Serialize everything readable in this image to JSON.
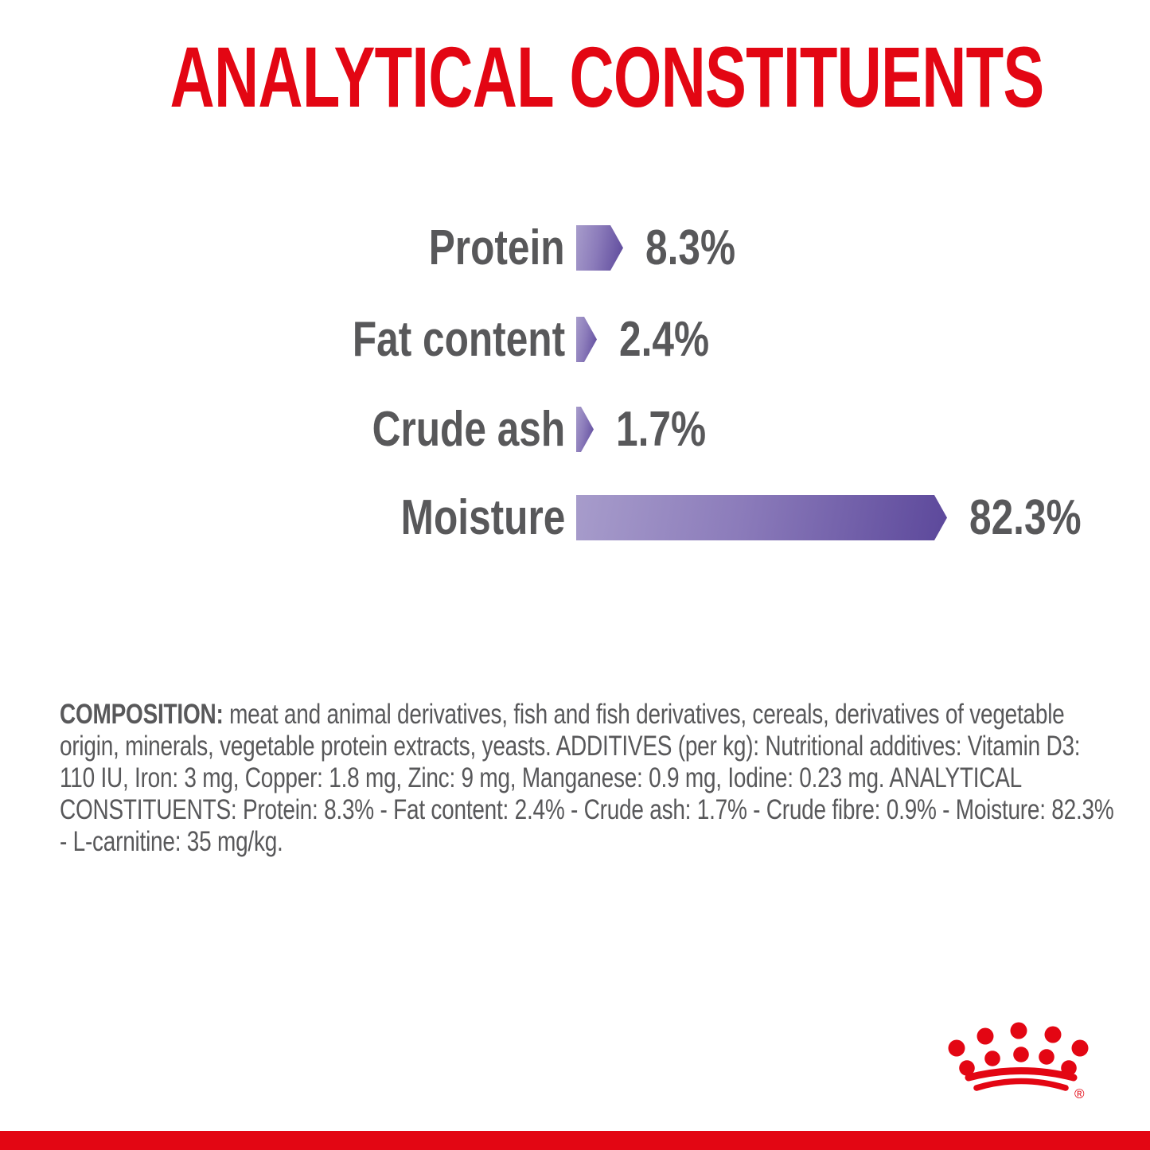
{
  "page": {
    "background": "#ffffff",
    "accent_red": "#e30613",
    "text_gray": "#58585a"
  },
  "title": "ANALYTICAL CONSTITUENTS",
  "chart_data": {
    "type": "bar",
    "orientation": "horizontal",
    "unit": "%",
    "grid": false,
    "legend": false,
    "categories": [
      "Protein",
      "Fat content",
      "Crude ash",
      "Moisture"
    ],
    "values": [
      8.3,
      2.4,
      1.7,
      82.3
    ],
    "rows": [
      {
        "label": "Protein",
        "value": 8.3,
        "display": "8.3%"
      },
      {
        "label": "Fat content",
        "value": 2.4,
        "display": "2.4%"
      },
      {
        "label": "Crude ash",
        "value": 1.7,
        "display": "1.7%"
      },
      {
        "label": "Moisture",
        "value": 82.3,
        "display": "82.3%"
      }
    ],
    "bar_gradient": [
      "#a79ccb",
      "#5c489b"
    ],
    "label_color": "#58585a",
    "value_label_color": "#58585a"
  },
  "composition": {
    "label": "COMPOSITION:",
    "text": " meat and animal derivatives, fish and fish derivatives, cereals, derivatives of vegetable\norigin, minerals, vegetable protein extracts, yeasts. ADDITIVES (per kg): Nutritional additives: Vitamin D3:\n110 IU, Iron: 3 mg, Copper: 1.8 mg, Zinc: 9 mg, Manganese: 0.9 mg, Iodine: 0.23 mg. ANALYTICAL\nCONSTITUENTS: Protein: 8.3% - Fat content: 2.4% - Crude ash: 1.7% - Crude fibre: 0.9% - Moisture: 82.3%\n- L-carnitine: 35 mg/kg."
  },
  "branding": {
    "logo": "royal-canin-crown",
    "registered_mark": "®",
    "color": "#e30613"
  }
}
